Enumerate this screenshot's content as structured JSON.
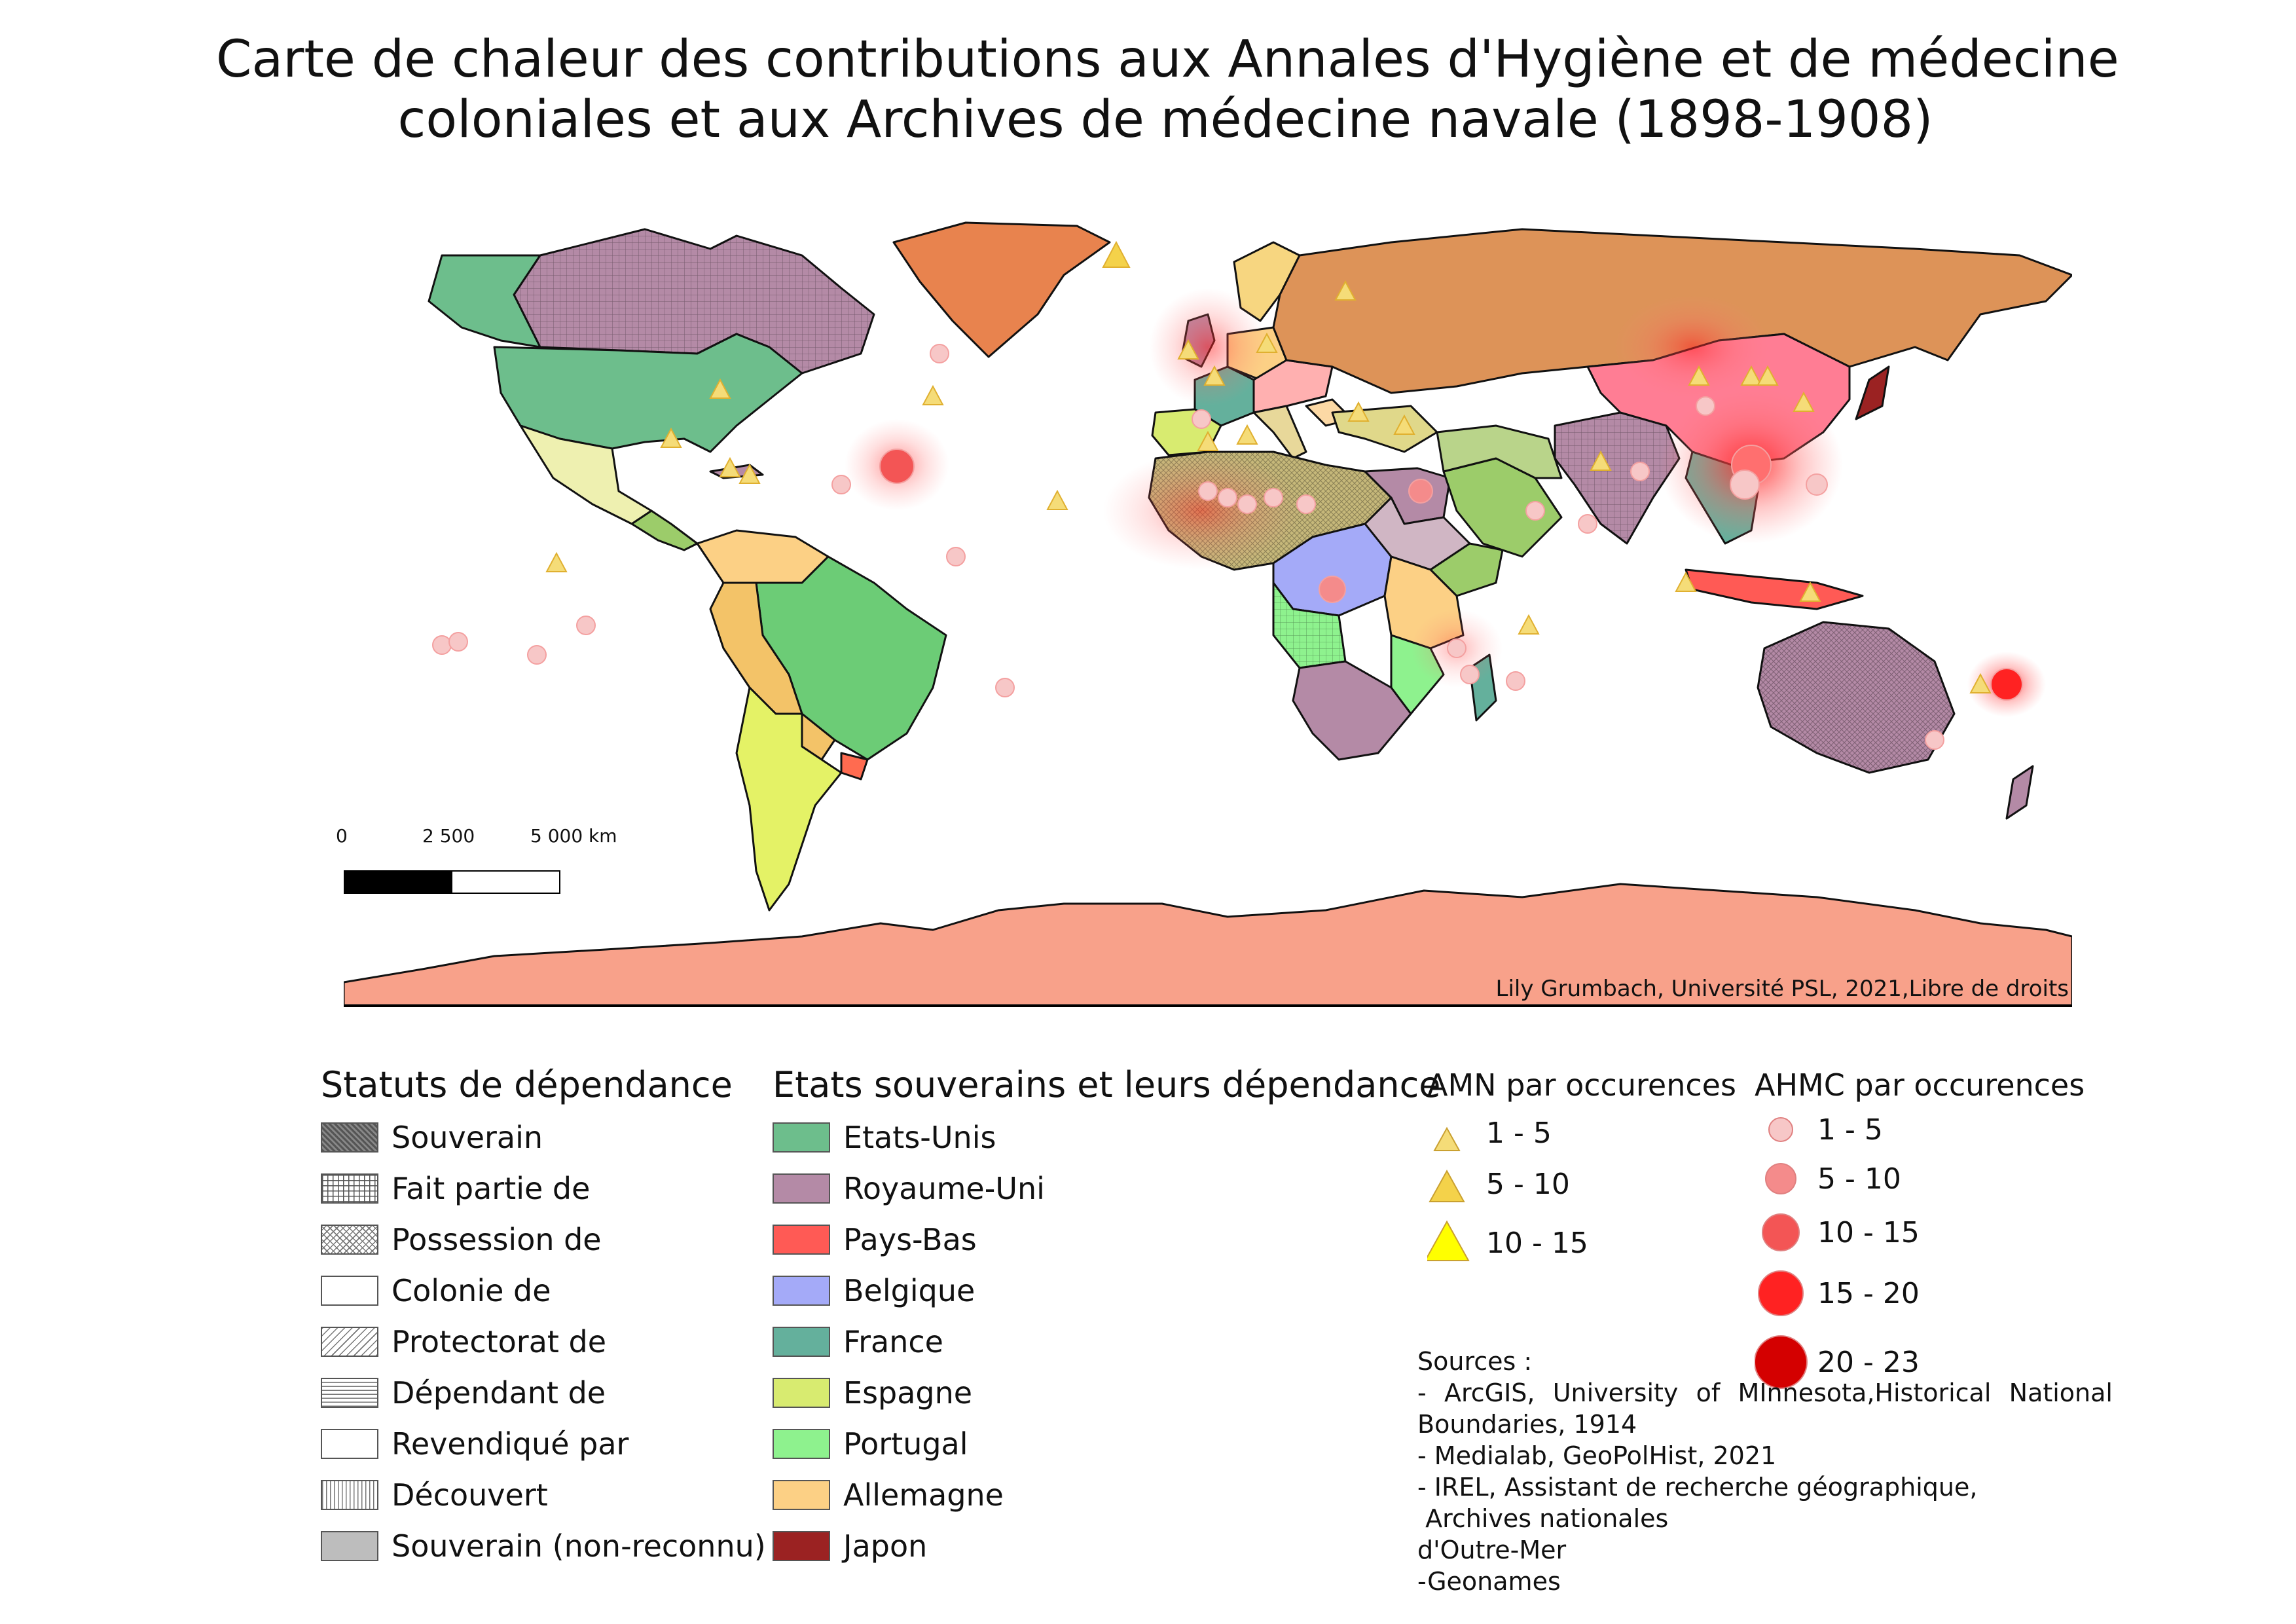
{
  "title_line1": "Carte de chaleur des contributions aux Annales d'Hygiène et de médecine",
  "title_line2": "coloniales et aux Archives de médecine navale (1898-1908)",
  "scale_bar": {
    "labels": [
      "0",
      "2 500",
      "5 000 km"
    ]
  },
  "credit": "Lily Grumbach, Université PSL, 2021,Libre de droits",
  "legend_status": {
    "heading": "Statuts de dépendance",
    "items": [
      {
        "label": "Souverain",
        "pattern": "crosshatch-dark"
      },
      {
        "label": "Fait partie de",
        "pattern": "grid"
      },
      {
        "label": "Possession de",
        "pattern": "crosshatch"
      },
      {
        "label": "Colonie de",
        "pattern": "none"
      },
      {
        "label": "Protectorat de",
        "pattern": "diagonal"
      },
      {
        "label": "Dépendant de",
        "pattern": "horizontal"
      },
      {
        "label": "Revendiqué par",
        "pattern": "none"
      },
      {
        "label": "Découvert",
        "pattern": "vertical"
      },
      {
        "label": "Souverain (non-reconnu)",
        "pattern": "grey"
      }
    ]
  },
  "legend_states": {
    "heading": "Etats souverains et leurs dépendance",
    "items": [
      {
        "label": "Etats-Unis",
        "color": "#6dbe8c"
      },
      {
        "label": "Royaume-Uni",
        "color": "#b48aa6"
      },
      {
        "label": "Pays-Bas",
        "color": "#ff5a55"
      },
      {
        "label": "Belgique",
        "color": "#a4aaf8"
      },
      {
        "label": "France",
        "color": "#64b09c"
      },
      {
        "label": "Espagne",
        "color": "#d8eb70"
      },
      {
        "label": "Portugal",
        "color": "#8ef28e"
      },
      {
        "label": "Allemagne",
        "color": "#fcd085"
      },
      {
        "label": "Japon",
        "color": "#9b2222"
      }
    ]
  },
  "legend_amn": {
    "heading": "AMN par occurences",
    "items": [
      {
        "label": "1 - 5",
        "size": "small",
        "color": "#f5dc78"
      },
      {
        "label": "5 - 10",
        "size": "medium",
        "color": "#f4d24a"
      },
      {
        "label": "10 - 15",
        "size": "large",
        "color": "#ffff00"
      }
    ]
  },
  "legend_ahmc": {
    "heading": "AHMC par occurences",
    "items": [
      {
        "label": "1 - 5",
        "size": "xs",
        "color": "#f7c7c7"
      },
      {
        "label": "5 - 10",
        "size": "s",
        "color": "#f48b8b"
      },
      {
        "label": "10 - 15",
        "size": "m",
        "color": "#f35555"
      },
      {
        "label": "15 - 20",
        "size": "l",
        "color": "#ff2222"
      },
      {
        "label": "20 - 23",
        "size": "xl",
        "color": "#d40000"
      }
    ]
  },
  "sources": {
    "line1": "Sources :",
    "line2": "- ArcGIS, University of MInnesota,Historical National",
    "line3": "Boundaries, 1914",
    "line4": "- Medialab, GeoPolHist, 2021",
    "line5": "- IREL, Assistant de recherche géographique,",
    "line6": " Archives nationales",
    "line7": "d'Outre-Mer",
    "line8": "-Geonames"
  }
}
